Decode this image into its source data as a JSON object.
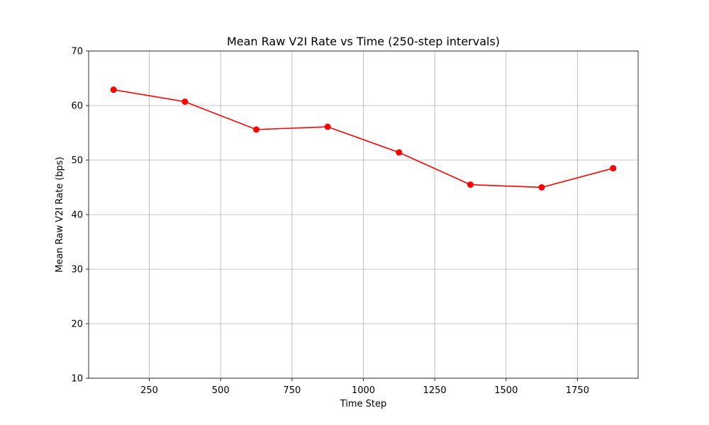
{
  "chart_data": {
    "type": "line",
    "title": "Mean Raw V2I Rate vs Time (250-step intervals)",
    "xlabel": "Time Step",
    "ylabel": "Mean Raw V2I Rate (bps)",
    "xlim": [
      37.5,
      1962.5
    ],
    "ylim": [
      10,
      70
    ],
    "xticks": [
      250,
      500,
      750,
      1000,
      1250,
      1500,
      1750
    ],
    "yticks": [
      10,
      20,
      30,
      40,
      50,
      60,
      70
    ],
    "grid": true,
    "series": [
      {
        "color": "#ff0000",
        "marker": "circle",
        "x": [
          125,
          375,
          625,
          875,
          1125,
          1375,
          1625,
          1875
        ],
        "y": [
          62.9,
          60.7,
          55.6,
          56.1,
          51.4,
          45.5,
          45.0,
          48.5
        ]
      }
    ]
  }
}
